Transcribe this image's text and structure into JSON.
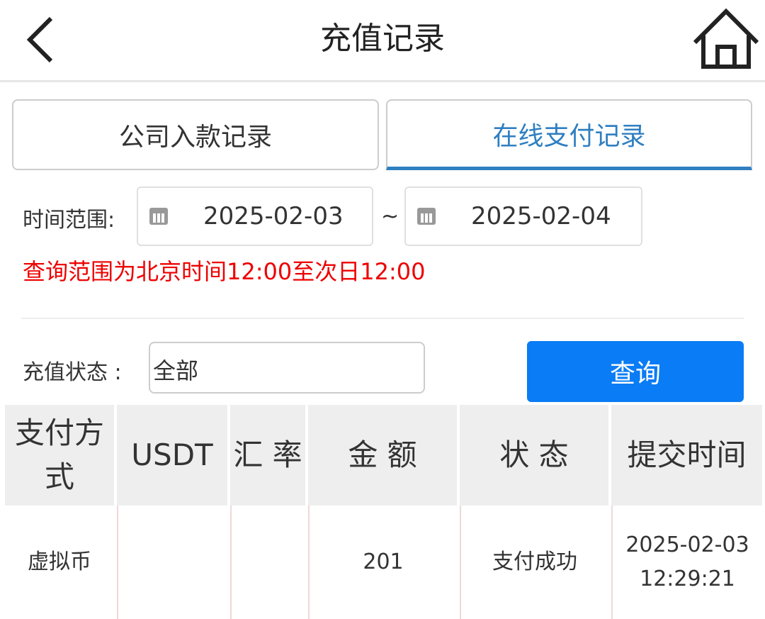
{
  "header": {
    "title": "充值记录",
    "back_icon": "chevron-left-icon",
    "home_icon": "home-icon"
  },
  "tabs": [
    {
      "label": "公司入款记录",
      "active": false
    },
    {
      "label": "在线支付记录",
      "active": true
    }
  ],
  "filter": {
    "time_range_label": "时间范围:",
    "start_date": "2025-02-03",
    "separator": "~",
    "end_date": "2025-02-04",
    "notice": "查询范围为北京时间12:00至次日12:00",
    "status_label": "充值状态 :",
    "status_value": "全部",
    "query_button": "查询"
  },
  "table": {
    "headers": [
      "支付方式",
      "USDT",
      "汇 率",
      "金 额",
      "状 态",
      "提交时间"
    ],
    "rows": [
      {
        "method": "虚拟币",
        "usdt": "",
        "rate": "",
        "amount": "201",
        "status": "支付成功",
        "time_date": "2025-02-03",
        "time_clock": "12:29:21"
      }
    ]
  },
  "colors": {
    "accent": "#2f7fc1",
    "button": "#0a7cf5",
    "warning": "#ee0000"
  }
}
